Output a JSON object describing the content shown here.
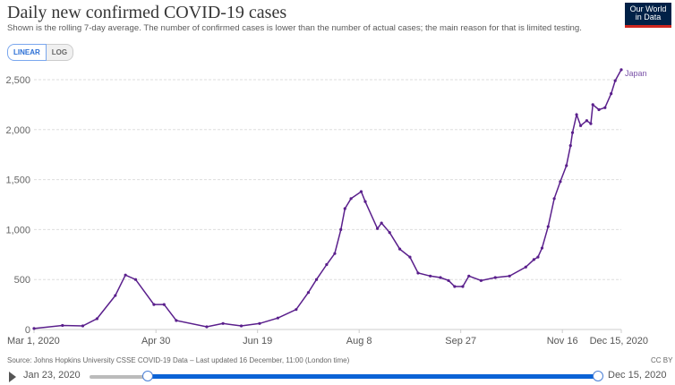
{
  "header": {
    "title": "Daily new confirmed COVID-19 cases",
    "subtitle": "Shown is the rolling 7-day average. The number of confirmed cases is lower than the number of actual cases; the main reason for that is limited testing.",
    "logo_text": "Our World in Data"
  },
  "scale_toggle": {
    "linear": "LINEAR",
    "log": "LOG",
    "selected": "LINEAR"
  },
  "footer": {
    "source": "Source: Johns Hopkins University CSSE COVID-19 Data – Last updated 16 December, 11:00 (London time)",
    "license": "CC BY"
  },
  "timeline": {
    "start": "Jan 23, 2020",
    "end": "Dec 15, 2020",
    "play_icon": "play-icon"
  },
  "colors": {
    "series": "#5a1f8c",
    "accent": "#0b63d6",
    "logo_bg": "#002147",
    "logo_bar": "#ce261e"
  },
  "chart_data": {
    "type": "line",
    "title": "Daily new confirmed COVID-19 cases",
    "xlim": [
      "2020-03-01",
      "2020-12-15"
    ],
    "ylim": [
      0,
      2500
    ],
    "grid": true,
    "x_ticks": [
      "Mar 1, 2020",
      "Apr 30",
      "Jun 19",
      "Aug 8",
      "Sep 27",
      "Nov 16",
      "Dec 15, 2020"
    ],
    "x_tick_dates": [
      "2020-03-01",
      "2020-04-30",
      "2020-06-19",
      "2020-08-08",
      "2020-09-27",
      "2020-11-16",
      "2020-12-15"
    ],
    "y_ticks": [
      0,
      500,
      1000,
      1500,
      2000,
      2500
    ],
    "y_tick_labels": [
      "0",
      "500",
      "1,000",
      "1,500",
      "2,000",
      "2,500"
    ],
    "series": [
      {
        "name": "Japan",
        "points": [
          [
            "2020-03-01",
            10
          ],
          [
            "2020-03-15",
            40
          ],
          [
            "2020-03-25",
            36
          ],
          [
            "2020-04-01",
            108
          ],
          [
            "2020-04-10",
            340
          ],
          [
            "2020-04-15",
            545
          ],
          [
            "2020-04-20",
            500
          ],
          [
            "2020-04-29",
            250
          ],
          [
            "2020-05-04",
            250
          ],
          [
            "2020-05-10",
            90
          ],
          [
            "2020-05-25",
            27
          ],
          [
            "2020-06-02",
            60
          ],
          [
            "2020-06-11",
            36
          ],
          [
            "2020-06-20",
            60
          ],
          [
            "2020-06-29",
            115
          ],
          [
            "2020-07-08",
            200
          ],
          [
            "2020-07-14",
            370
          ],
          [
            "2020-07-18",
            500
          ],
          [
            "2020-07-23",
            650
          ],
          [
            "2020-07-27",
            760
          ],
          [
            "2020-07-30",
            1000
          ],
          [
            "2020-08-01",
            1210
          ],
          [
            "2020-08-04",
            1310
          ],
          [
            "2020-08-09",
            1380
          ],
          [
            "2020-08-11",
            1280
          ],
          [
            "2020-08-17",
            1010
          ],
          [
            "2020-08-19",
            1065
          ],
          [
            "2020-08-23",
            970
          ],
          [
            "2020-08-28",
            805
          ],
          [
            "2020-09-02",
            725
          ],
          [
            "2020-09-06",
            565
          ],
          [
            "2020-09-12",
            535
          ],
          [
            "2020-09-17",
            520
          ],
          [
            "2020-09-21",
            490
          ],
          [
            "2020-09-24",
            430
          ],
          [
            "2020-09-28",
            430
          ],
          [
            "2020-10-01",
            535
          ],
          [
            "2020-10-07",
            490
          ],
          [
            "2020-10-14",
            520
          ],
          [
            "2020-10-21",
            535
          ],
          [
            "2020-10-29",
            625
          ],
          [
            "2020-11-02",
            700
          ],
          [
            "2020-11-04",
            725
          ],
          [
            "2020-11-06",
            815
          ],
          [
            "2020-11-09",
            1030
          ],
          [
            "2020-11-12",
            1310
          ],
          [
            "2020-11-15",
            1480
          ],
          [
            "2020-11-18",
            1640
          ],
          [
            "2020-11-20",
            1840
          ],
          [
            "2020-11-21",
            1970
          ],
          [
            "2020-11-23",
            2150
          ],
          [
            "2020-11-25",
            2040
          ],
          [
            "2020-11-28",
            2090
          ],
          [
            "2020-11-30",
            2060
          ],
          [
            "2020-12-01",
            2250
          ],
          [
            "2020-12-04",
            2200
          ],
          [
            "2020-12-07",
            2220
          ],
          [
            "2020-12-10",
            2360
          ],
          [
            "2020-12-12",
            2490
          ],
          [
            "2020-12-15",
            2600
          ]
        ]
      }
    ]
  }
}
